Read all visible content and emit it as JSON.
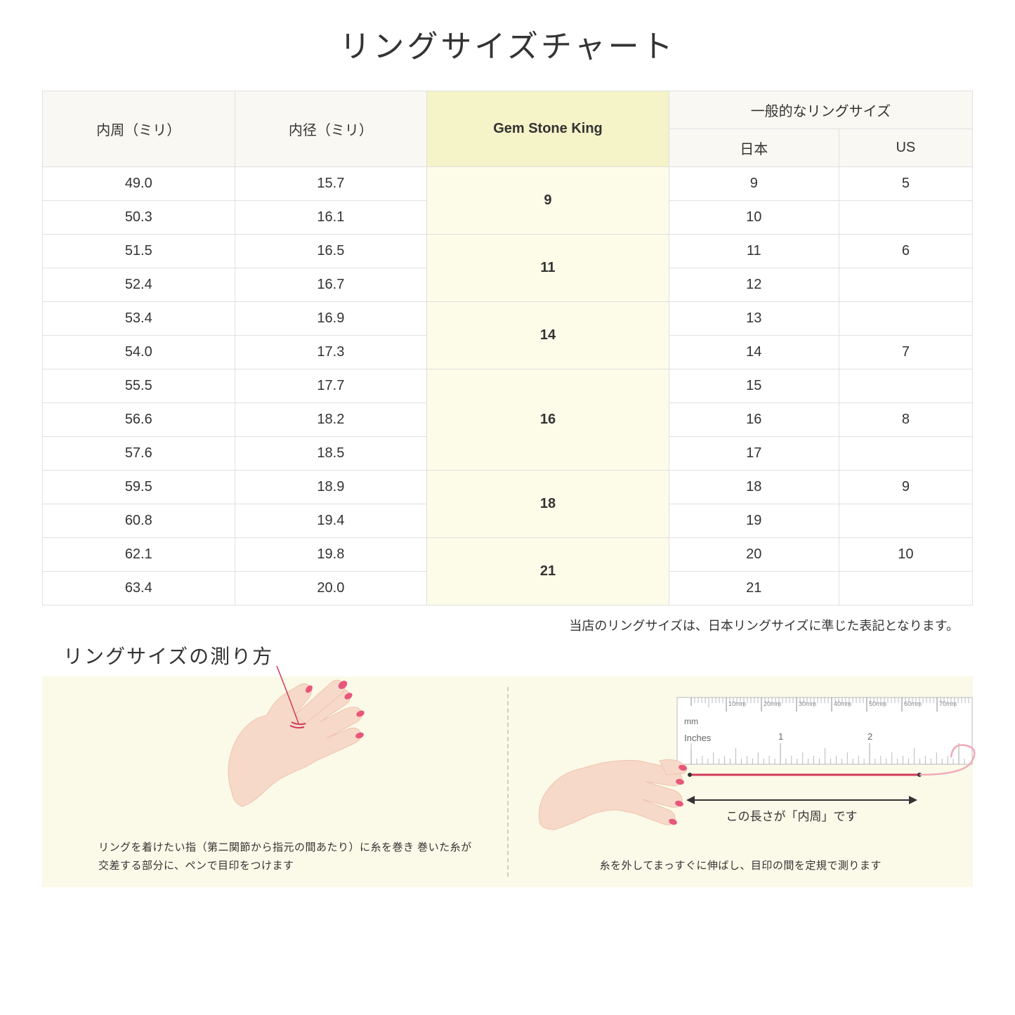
{
  "title": "リングサイズチャート",
  "table": {
    "headers": {
      "circumference": "内周（ミリ）",
      "diameter": "内径（ミリ）",
      "gsk": "Gem Stone King",
      "general_group": "一般的なリングサイズ",
      "japan": "日本",
      "us": "US"
    },
    "groups": [
      {
        "gsk": "9",
        "rows": [
          {
            "c": "49.0",
            "d": "15.7",
            "jp": "9",
            "us": "5"
          },
          {
            "c": "50.3",
            "d": "16.1",
            "jp": "10",
            "us": ""
          }
        ]
      },
      {
        "gsk": "11",
        "rows": [
          {
            "c": "51.5",
            "d": "16.5",
            "jp": "11",
            "us": "6"
          },
          {
            "c": "52.4",
            "d": "16.7",
            "jp": "12",
            "us": ""
          }
        ]
      },
      {
        "gsk": "14",
        "rows": [
          {
            "c": "53.4",
            "d": "16.9",
            "jp": "13",
            "us": ""
          },
          {
            "c": "54.0",
            "d": "17.3",
            "jp": "14",
            "us": "7"
          }
        ]
      },
      {
        "gsk": "16",
        "rows": [
          {
            "c": "55.5",
            "d": "17.7",
            "jp": "15",
            "us": ""
          },
          {
            "c": "56.6",
            "d": "18.2",
            "jp": "16",
            "us": "8"
          },
          {
            "c": "57.6",
            "d": "18.5",
            "jp": "17",
            "us": ""
          }
        ]
      },
      {
        "gsk": "18",
        "rows": [
          {
            "c": "59.5",
            "d": "18.9",
            "jp": "18",
            "us": "9"
          },
          {
            "c": "60.8",
            "d": "19.4",
            "jp": "19",
            "us": ""
          }
        ]
      },
      {
        "gsk": "21",
        "rows": [
          {
            "c": "62.1",
            "d": "19.8",
            "jp": "20",
            "us": "10"
          },
          {
            "c": "63.4",
            "d": "20.0",
            "jp": "21",
            "us": ""
          }
        ]
      }
    ]
  },
  "note": "当店のリングサイズは、日本リングサイズに準じた表記となります。",
  "measure": {
    "title": "リングサイズの測り方",
    "left_caption": "リングを着けたい指（第二関節から指元の間あたり）に糸を巻き\n巻いた糸が交差する部分に、ペンで目印をつけます",
    "right_caption": "糸を外してまっすぐに伸ばし、目印の間を定規で測ります",
    "length_label": "この長さが「内周」です",
    "ruler_labels": {
      "mm": "mm",
      "inches": "Inches",
      "mm_ticks": [
        "10mm",
        "20mm",
        "30mm",
        "40mm",
        "50mm",
        "60mm",
        "70mm"
      ],
      "in_ticks": [
        "1",
        "2"
      ]
    }
  },
  "colors": {
    "header_bg": "#faf8f3",
    "highlight_header_bg": "#f5f3c8",
    "highlight_cell_bg": "#fdfce9",
    "border": "#e0e0e0",
    "measure_bg": "#fbf9e8",
    "skin": "#f7d9c9",
    "skin_shadow": "#eec4af",
    "nail": "#e8577a",
    "thread": "#d13a5a",
    "thread_light": "#f0a8b8"
  }
}
